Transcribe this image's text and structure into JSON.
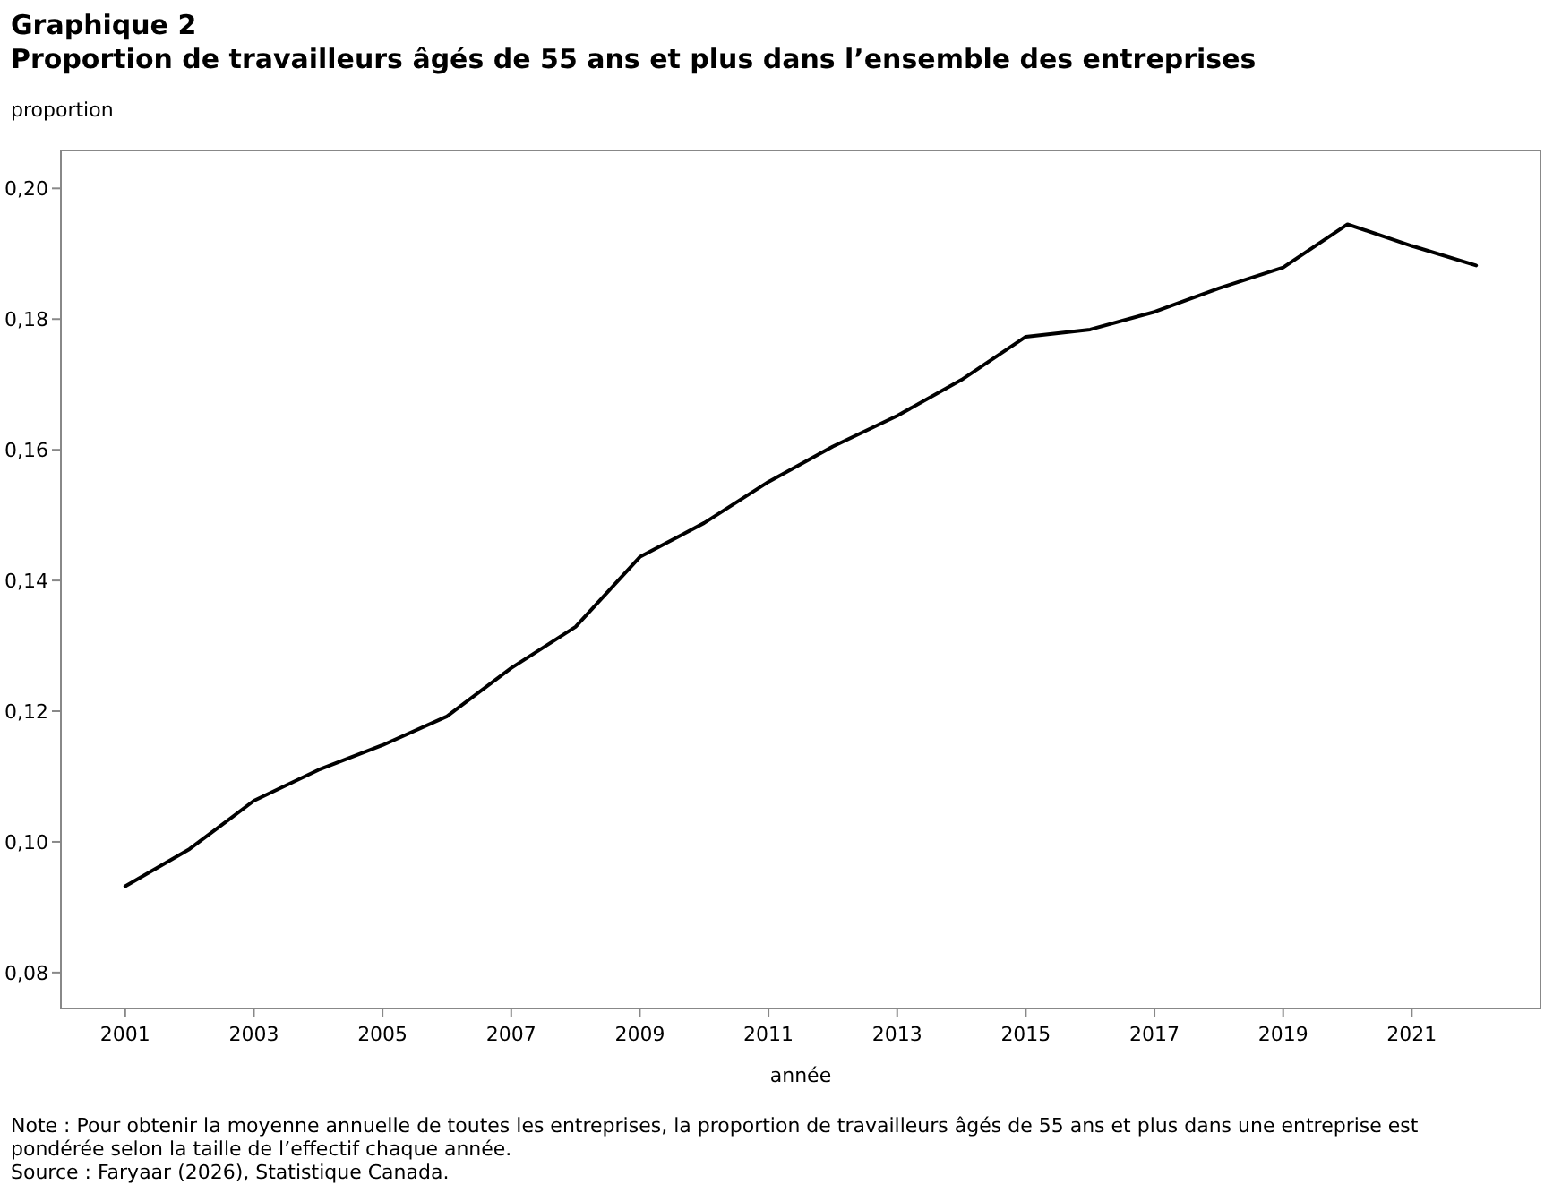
{
  "chart_data": {
    "type": "line",
    "title": "Graphique 2",
    "subtitle": "Proportion de travailleurs âgés de 55 ans et plus dans l’ensemble des entreprises",
    "xlabel": "année",
    "ylabel": "proportion",
    "x": [
      2001,
      2002,
      2003,
      2004,
      2005,
      2006,
      2007,
      2008,
      2009,
      2010,
      2011,
      2012,
      2013,
      2014,
      2015,
      2016,
      2017,
      2018,
      2019,
      2020,
      2021,
      2022
    ],
    "series": [
      {
        "color": "#000000",
        "values": [
          0.0932,
          0.0989,
          0.1063,
          0.111,
          0.1148,
          0.1192,
          0.1266,
          0.1329,
          0.1436,
          0.1488,
          0.1551,
          0.1605,
          0.1652,
          0.1707,
          0.1773,
          0.1784,
          0.1811,
          0.1847,
          0.1879,
          0.1945,
          0.1912,
          0.1882
        ]
      }
    ],
    "xlim": [
      2000,
      2023
    ],
    "xticks": [
      2001,
      2003,
      2005,
      2007,
      2009,
      2011,
      2013,
      2015,
      2017,
      2019,
      2021
    ],
    "ylim": [
      0.0745,
      0.2058
    ],
    "yticks": [
      {
        "value": 0.08,
        "label": "0,08"
      },
      {
        "value": 0.1,
        "label": "0,10"
      },
      {
        "value": 0.12,
        "label": "0,12"
      },
      {
        "value": 0.14,
        "label": "0,14"
      },
      {
        "value": 0.16,
        "label": "0,16"
      },
      {
        "value": 0.18,
        "label": "0,18"
      },
      {
        "value": 0.2,
        "label": "0,20"
      }
    ],
    "grid": false,
    "marker": "none",
    "line_style": "solid",
    "annotations": [
      "Note : Pour obtenir la moyenne annuelle de toutes les entreprises, la proportion de travailleurs âgés de 55 ans et plus dans une entreprise est pondérée selon la taille de l’effectif chaque année.",
      "Source : Faryaar (2026), Statistique Canada."
    ]
  }
}
